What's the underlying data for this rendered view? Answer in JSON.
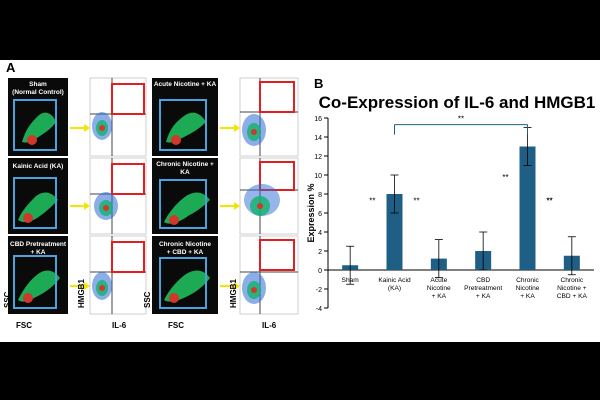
{
  "panel_a": {
    "label": "A",
    "left_column": {
      "plots": [
        {
          "title": [
            "Sham",
            "(Normal Control)"
          ]
        },
        {
          "title": [
            "Kainic Acid (KA)"
          ]
        },
        {
          "title": [
            "CBD Pretreatment",
            "+ KA"
          ]
        }
      ],
      "x_axis_label": "FSC",
      "y_axis_label": "SSC",
      "right_x_axis_label": "IL-6",
      "right_y_axis_label": "HMGB1"
    },
    "right_column": {
      "plots": [
        {
          "title": [
            "Acute Nicotine + KA"
          ]
        },
        {
          "title": [
            "Chronic Nicotine +",
            "KA"
          ]
        },
        {
          "title": [
            "Chronic Nicotine",
            "+ CBD + KA"
          ]
        }
      ],
      "x_axis_label": "FSC",
      "y_axis_label": "SSC",
      "right_x_axis_label": "IL-6",
      "right_y_axis_label": "HMGB1"
    }
  },
  "chart_data": {
    "panel_label": "B",
    "type": "bar",
    "title": "Co-Expression of IL-6 and HMGB1",
    "xlabel": "",
    "ylabel": "Expression %",
    "ylim": [
      -4,
      16
    ],
    "yticks": [
      -4,
      -2,
      0,
      2,
      4,
      6,
      8,
      10,
      12,
      14,
      16
    ],
    "categories": [
      [
        "Sham"
      ],
      [
        "Kainic Acid",
        "(KA)"
      ],
      [
        "Acute",
        "Nicotine",
        "+ KA"
      ],
      [
        "CBD",
        "Pretreatment",
        "+ KA"
      ],
      [
        "Chronic",
        "Nicotine",
        "+ KA"
      ],
      [
        "Chronic",
        "Nicotine +",
        "CBD + KA"
      ]
    ],
    "values": [
      0.5,
      8.0,
      1.2,
      2.0,
      13.0,
      1.5
    ],
    "errors": [
      2.0,
      2.0,
      2.0,
      2.0,
      2.0,
      2.0
    ],
    "significance": {
      "marker": "**",
      "labels": [
        "**",
        "**",
        "**",
        "**",
        "**"
      ],
      "bracket_label": "**"
    },
    "bar_color": "#1f5f86",
    "grid": false
  },
  "colors": {
    "plot_background": "#0a0a0a",
    "gate_box": "#4aa3df",
    "quadrant_box": "#e02020",
    "arrow": "#f2e600"
  }
}
